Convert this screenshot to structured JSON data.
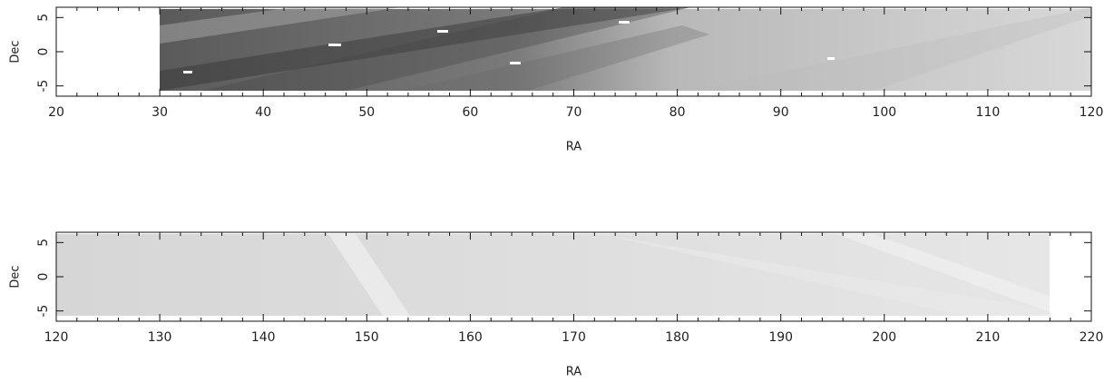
{
  "chart_data": [
    {
      "type": "heatmap",
      "xlabel": "RA",
      "ylabel": "Dec",
      "xlim": [
        20,
        120
      ],
      "ylim": [
        -6.5,
        6.5
      ],
      "xticks": [
        20,
        30,
        40,
        50,
        60,
        70,
        80,
        90,
        100,
        110,
        120
      ],
      "yticks": [
        -5,
        0,
        5
      ]
    },
    {
      "type": "heatmap",
      "xlabel": "RA",
      "ylabel": "Dec",
      "xlim": [
        120,
        220
      ],
      "ylim": [
        -6.5,
        6.5
      ],
      "xticks": [
        120,
        130,
        140,
        150,
        160,
        170,
        180,
        190,
        200,
        210,
        220
      ],
      "yticks": [
        -5,
        0,
        5
      ]
    }
  ]
}
